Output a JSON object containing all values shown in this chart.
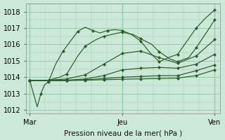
{
  "xlabel": "Pression niveau de la mer( hPa )",
  "xtick_labels": [
    "Mar",
    "Jeu",
    "Ven"
  ],
  "xtick_positions": [
    0.0,
    0.5,
    1.0
  ],
  "ylim": [
    1011.8,
    1018.5
  ],
  "yticks": [
    1012,
    1013,
    1014,
    1015,
    1016,
    1017,
    1018
  ],
  "bg_color": "#cce8d8",
  "grid_color": "#99ccaa",
  "line_color": "#2a5a2a",
  "series": [
    {
      "x": [
        0.0,
        0.04,
        0.06,
        0.08,
        0.1,
        0.14,
        0.18,
        0.22,
        0.26,
        0.3,
        0.34,
        0.38,
        0.42,
        0.46,
        0.5,
        0.55,
        0.6,
        0.65,
        0.7,
        0.75,
        0.8,
        0.85,
        0.9,
        0.95,
        1.0
      ],
      "y": [
        1013.8,
        1012.2,
        1013.0,
        1013.55,
        1013.7,
        1014.8,
        1015.6,
        1016.2,
        1016.8,
        1017.05,
        1016.85,
        1016.7,
        1016.85,
        1016.9,
        1016.85,
        1016.6,
        1016.2,
        1015.5,
        1014.95,
        1015.2,
        1015.4,
        1016.2,
        1017.0,
        1017.6,
        1018.1
      ],
      "marker_every": 2
    },
    {
      "x": [
        0.0,
        0.06,
        0.1,
        0.16,
        0.2,
        0.26,
        0.3,
        0.36,
        0.4,
        0.46,
        0.5,
        0.56,
        0.6,
        0.66,
        0.7,
        0.76,
        0.8,
        0.86,
        0.9,
        0.96,
        1.0
      ],
      "y": [
        1013.8,
        1013.8,
        1013.82,
        1014.0,
        1014.2,
        1015.3,
        1015.9,
        1016.3,
        1016.5,
        1016.65,
        1016.75,
        1016.6,
        1016.35,
        1016.0,
        1015.55,
        1015.1,
        1014.95,
        1015.2,
        1015.8,
        1016.8,
        1017.5
      ],
      "marker_every": 2
    },
    {
      "x": [
        0.0,
        0.1,
        0.2,
        0.3,
        0.4,
        0.5,
        0.6,
        0.7,
        0.8,
        0.9,
        1.0
      ],
      "y": [
        1013.8,
        1013.82,
        1013.9,
        1014.15,
        1014.8,
        1015.45,
        1015.6,
        1015.2,
        1014.85,
        1015.3,
        1016.3
      ],
      "marker_every": 1
    },
    {
      "x": [
        0.0,
        0.1,
        0.2,
        0.3,
        0.4,
        0.5,
        0.6,
        0.7,
        0.8,
        0.9,
        1.0
      ],
      "y": [
        1013.8,
        1013.8,
        1013.82,
        1013.9,
        1014.1,
        1014.45,
        1014.55,
        1014.6,
        1014.55,
        1014.8,
        1015.4
      ],
      "marker_every": 1
    },
    {
      "x": [
        0.0,
        0.1,
        0.2,
        0.3,
        0.4,
        0.5,
        0.6,
        0.7,
        0.8,
        0.9,
        1.0
      ],
      "y": [
        1013.8,
        1013.8,
        1013.81,
        1013.85,
        1013.92,
        1014.0,
        1014.05,
        1014.1,
        1014.1,
        1014.4,
        1014.75
      ],
      "marker_every": 1
    },
    {
      "x": [
        0.0,
        0.1,
        0.2,
        0.3,
        0.4,
        0.5,
        0.6,
        0.7,
        0.8,
        0.9,
        1.0
      ],
      "y": [
        1013.8,
        1013.8,
        1013.8,
        1013.82,
        1013.85,
        1013.88,
        1013.9,
        1013.92,
        1013.95,
        1014.1,
        1014.45
      ],
      "marker_every": 1
    }
  ]
}
